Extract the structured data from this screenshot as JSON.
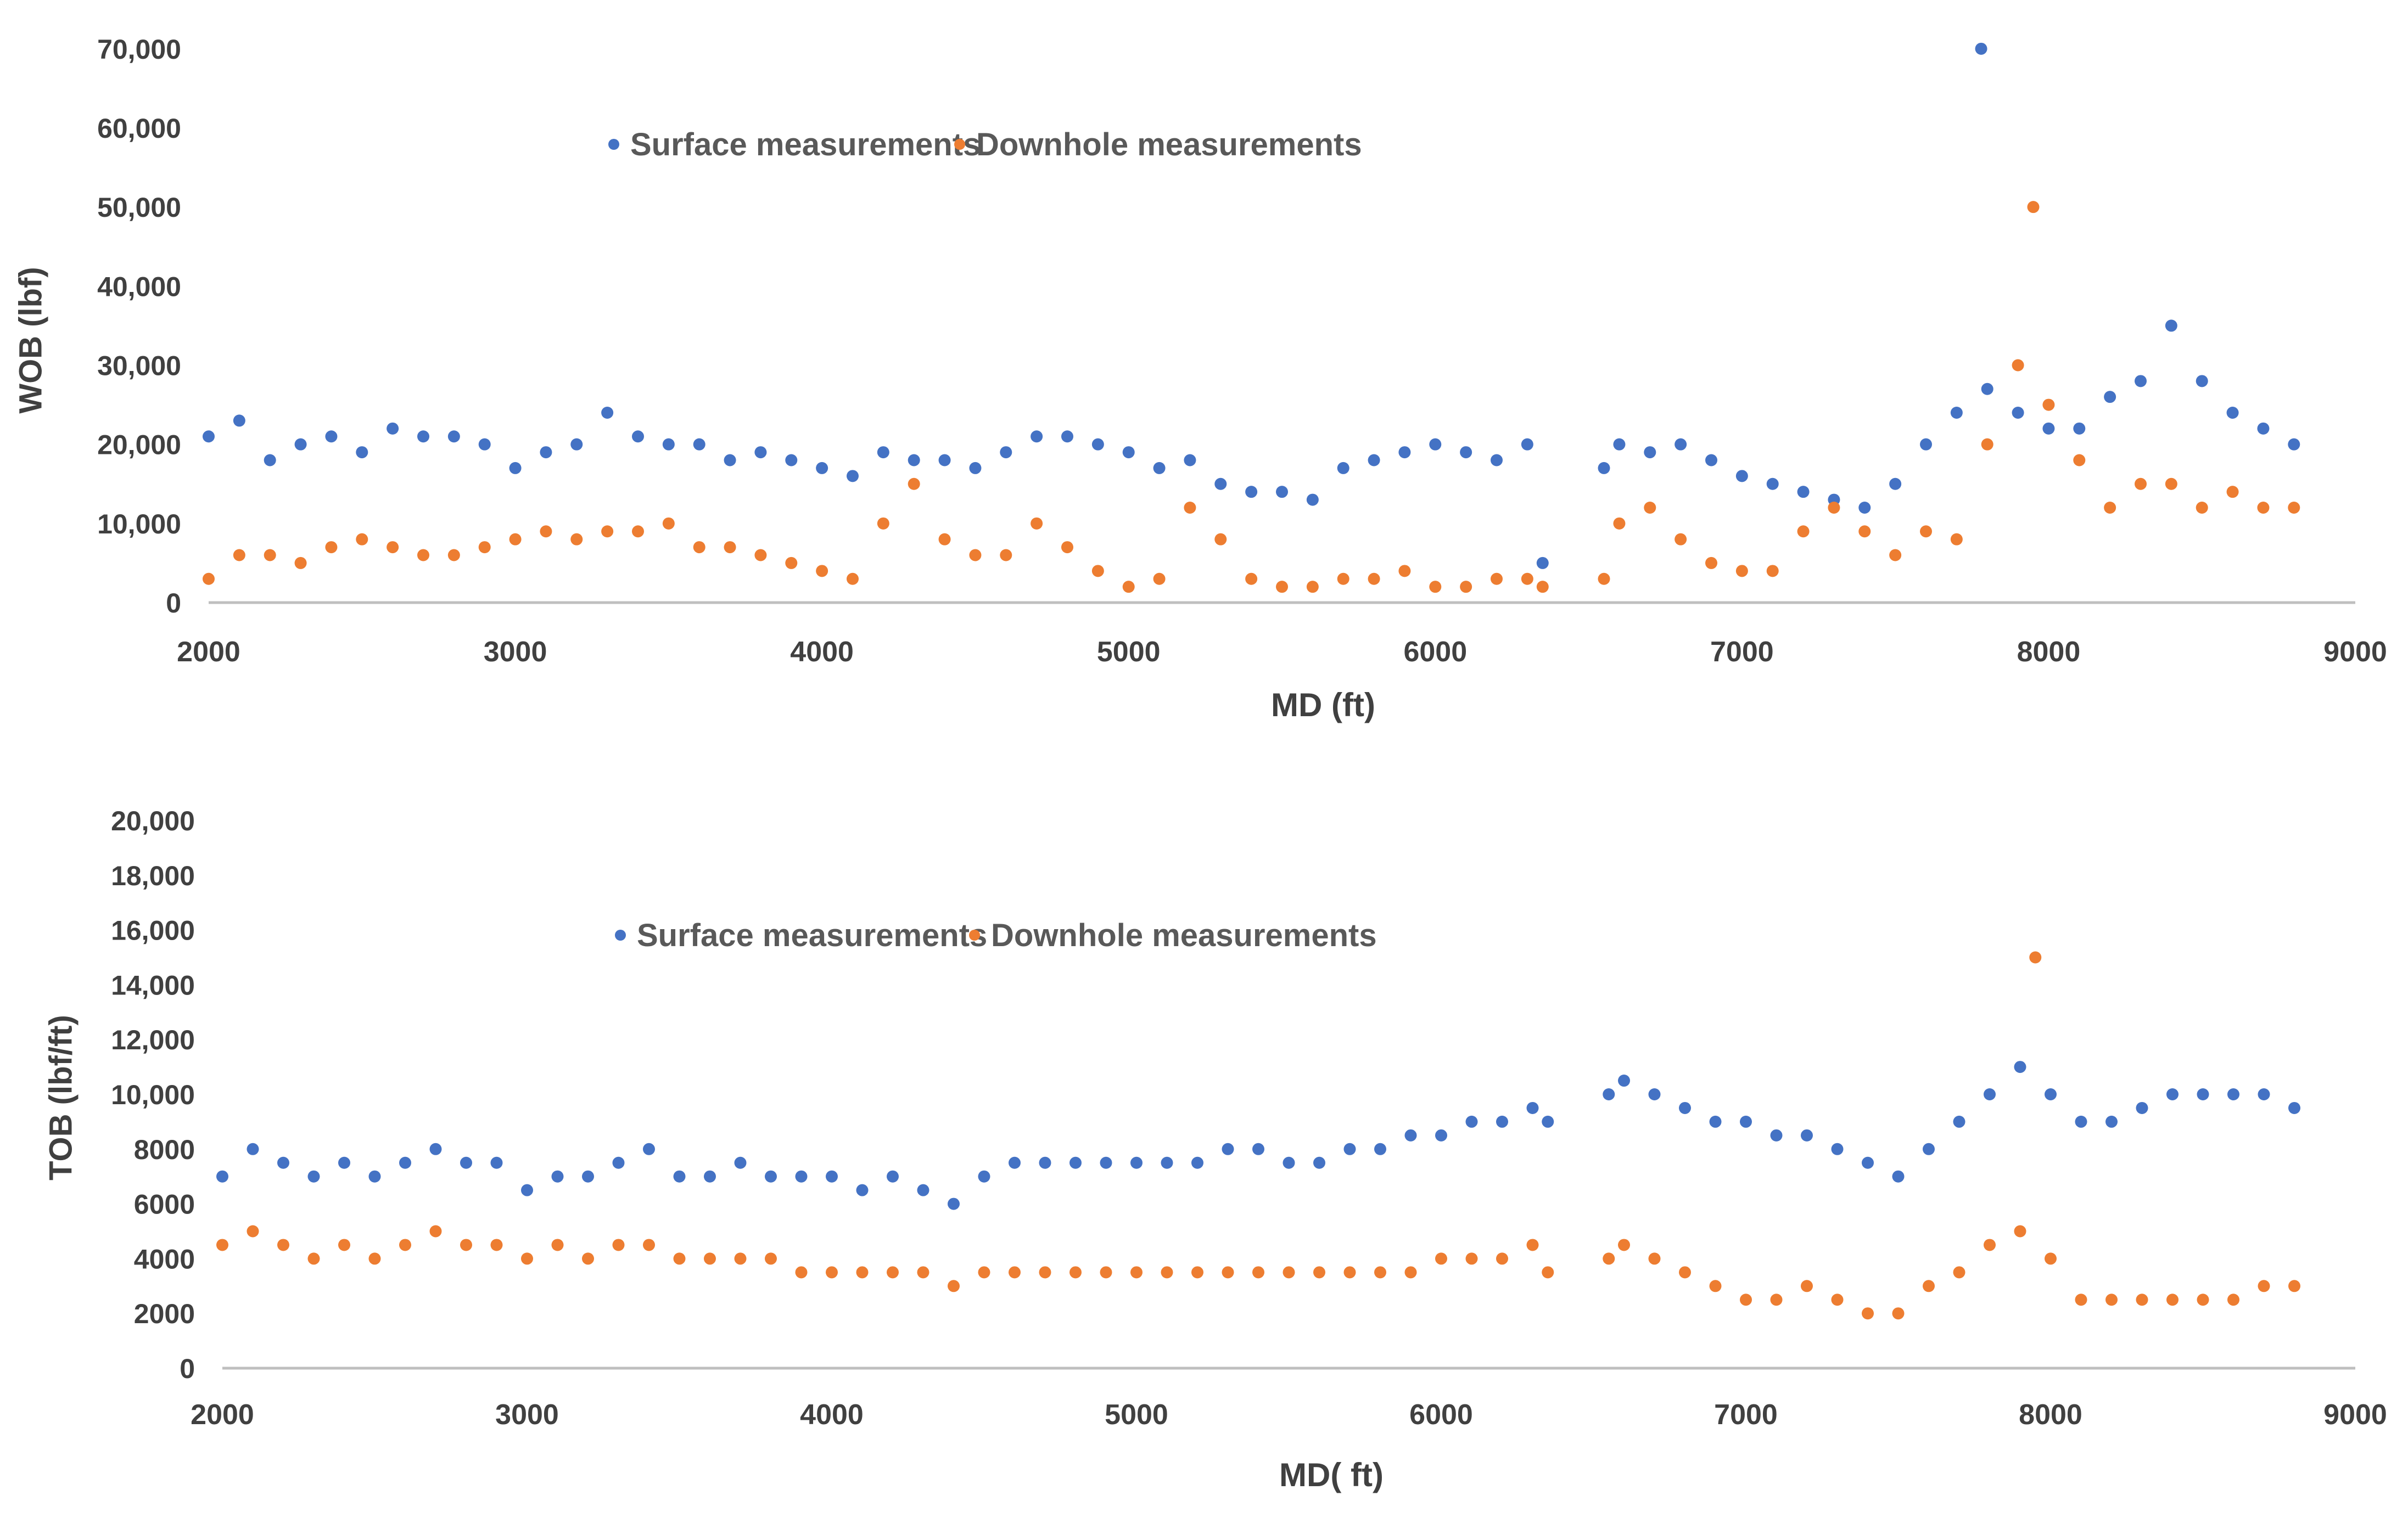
{
  "colors": {
    "surface": "#4472C4",
    "downhole": "#ED7D31",
    "axis": "#BFBFBF",
    "text": "#404040"
  },
  "chart_data": [
    {
      "type": "scatter",
      "id": "wob",
      "xlabel": "MD (ft)",
      "ylabel": "WOB (lbf)",
      "xlim": [
        2000,
        9000
      ],
      "ylim": [
        0,
        72000
      ],
      "xticks": [
        {
          "v": 2000,
          "label": "2000"
        },
        {
          "v": 3000,
          "label": "3000"
        },
        {
          "v": 4000,
          "label": "4000"
        },
        {
          "v": 5000,
          "label": "5000"
        },
        {
          "v": 6000,
          "label": "6000"
        },
        {
          "v": 7000,
          "label": "7000"
        },
        {
          "v": 8000,
          "label": "8000"
        },
        {
          "v": 9000,
          "label": "9000"
        }
      ],
      "yticks": [
        {
          "v": 0,
          "label": "0"
        },
        {
          "v": 10000,
          "label": "10,000"
        },
        {
          "v": 20000,
          "label": "20,000"
        },
        {
          "v": 30000,
          "label": "30,000"
        },
        {
          "v": 40000,
          "label": "40,000"
        },
        {
          "v": 50000,
          "label": "50,000"
        },
        {
          "v": 60000,
          "label": "60,000"
        },
        {
          "v": 70000,
          "label": "70,000"
        }
      ],
      "legend": [
        "Surface measurements",
        "Downhole measurements"
      ],
      "series": [
        {
          "name": "Surface measurements",
          "x": [
            2000,
            2100,
            2200,
            2300,
            2400,
            2500,
            2600,
            2700,
            2800,
            2900,
            3000,
            3100,
            3200,
            3300,
            3400,
            3500,
            3600,
            3700,
            3800,
            3900,
            4000,
            4100,
            4200,
            4300,
            4400,
            4500,
            4600,
            4700,
            4800,
            4900,
            5000,
            5100,
            5200,
            5300,
            5400,
            5500,
            5600,
            5700,
            5800,
            5900,
            6000,
            6100,
            6200,
            6300,
            6350,
            6550,
            6600,
            6700,
            6800,
            6900,
            7000,
            7100,
            7200,
            7300,
            7400,
            7500,
            7600,
            7700,
            7780,
            7800,
            7900,
            8000,
            8100,
            8200,
            8300,
            8400,
            8500,
            8600,
            8700,
            8800
          ],
          "y": [
            21000,
            23000,
            18000,
            20000,
            21000,
            19000,
            22000,
            21000,
            21000,
            20000,
            17000,
            19000,
            20000,
            24000,
            21000,
            20000,
            20000,
            18000,
            19000,
            18000,
            17000,
            16000,
            19000,
            18000,
            18000,
            17000,
            19000,
            21000,
            21000,
            20000,
            19000,
            17000,
            18000,
            15000,
            14000,
            14000,
            13000,
            17000,
            18000,
            19000,
            20000,
            19000,
            18000,
            20000,
            5000,
            17000,
            20000,
            19000,
            20000,
            18000,
            16000,
            15000,
            14000,
            13000,
            12000,
            15000,
            20000,
            24000,
            70000,
            27000,
            24000,
            22000,
            22000,
            26000,
            28000,
            35000,
            28000,
            24000,
            22000,
            20000
          ]
        },
        {
          "name": "Downhole measurements",
          "x": [
            2000,
            2100,
            2200,
            2300,
            2400,
            2500,
            2600,
            2700,
            2800,
            2900,
            3000,
            3100,
            3200,
            3300,
            3400,
            3500,
            3600,
            3700,
            3800,
            3900,
            4000,
            4100,
            4200,
            4300,
            4400,
            4500,
            4600,
            4700,
            4800,
            4900,
            5000,
            5100,
            5200,
            5300,
            5400,
            5500,
            5600,
            5700,
            5800,
            5900,
            6000,
            6100,
            6200,
            6300,
            6350,
            6550,
            6600,
            6700,
            6800,
            6900,
            7000,
            7100,
            7200,
            7300,
            7400,
            7500,
            7600,
            7700,
            7800,
            7900,
            7950,
            8000,
            8100,
            8200,
            8300,
            8400,
            8500,
            8600,
            8700,
            8800
          ],
          "y": [
            3000,
            6000,
            6000,
            5000,
            7000,
            8000,
            7000,
            6000,
            6000,
            7000,
            8000,
            9000,
            8000,
            9000,
            9000,
            10000,
            7000,
            7000,
            6000,
            5000,
            4000,
            3000,
            10000,
            15000,
            8000,
            6000,
            6000,
            10000,
            7000,
            4000,
            2000,
            3000,
            12000,
            8000,
            3000,
            2000,
            2000,
            3000,
            3000,
            4000,
            2000,
            2000,
            3000,
            3000,
            2000,
            3000,
            10000,
            12000,
            8000,
            5000,
            4000,
            4000,
            9000,
            12000,
            9000,
            6000,
            9000,
            8000,
            20000,
            30000,
            50000,
            25000,
            18000,
            12000,
            15000,
            15000,
            12000,
            14000,
            12000,
            12000
          ]
        }
      ]
    },
    {
      "type": "scatter",
      "id": "tob",
      "xlabel": "MD( ft)",
      "ylabel": "TOB (lbf/ft)",
      "xlim": [
        2000,
        9000
      ],
      "ylim": [
        0,
        20000
      ],
      "xticks": [
        {
          "v": 2000,
          "label": "2000"
        },
        {
          "v": 3000,
          "label": "3000"
        },
        {
          "v": 4000,
          "label": "4000"
        },
        {
          "v": 5000,
          "label": "5000"
        },
        {
          "v": 6000,
          "label": "6000"
        },
        {
          "v": 7000,
          "label": "7000"
        },
        {
          "v": 8000,
          "label": "8000"
        },
        {
          "v": 9000,
          "label": "9000"
        }
      ],
      "yticks": [
        {
          "v": 0,
          "label": "0"
        },
        {
          "v": 2000,
          "label": "2000"
        },
        {
          "v": 4000,
          "label": "4000"
        },
        {
          "v": 6000,
          "label": "6000"
        },
        {
          "v": 8000,
          "label": "8000"
        },
        {
          "v": 10000,
          "label": "10,000"
        },
        {
          "v": 12000,
          "label": "12,000"
        },
        {
          "v": 14000,
          "label": "14,000"
        },
        {
          "v": 16000,
          "label": "16,000"
        },
        {
          "v": 18000,
          "label": "18,000"
        },
        {
          "v": 20000,
          "label": "20,000"
        }
      ],
      "legend": [
        "Surface measurements",
        "Downhole measurements"
      ],
      "series": [
        {
          "name": "Surface measurements",
          "x": [
            2000,
            2100,
            2200,
            2300,
            2400,
            2500,
            2600,
            2700,
            2800,
            2900,
            3000,
            3100,
            3200,
            3300,
            3400,
            3500,
            3600,
            3700,
            3800,
            3900,
            4000,
            4100,
            4200,
            4300,
            4400,
            4500,
            4600,
            4700,
            4800,
            4900,
            5000,
            5100,
            5200,
            5300,
            5400,
            5500,
            5600,
            5700,
            5800,
            5900,
            6000,
            6100,
            6200,
            6300,
            6350,
            6550,
            6600,
            6700,
            6800,
            6900,
            7000,
            7100,
            7200,
            7300,
            7400,
            7500,
            7600,
            7700,
            7800,
            7900,
            8000,
            8100,
            8200,
            8300,
            8400,
            8500,
            8600,
            8700,
            8800
          ],
          "y": [
            7000,
            8000,
            7500,
            7000,
            7500,
            7000,
            7500,
            8000,
            7500,
            7500,
            6500,
            7000,
            7000,
            7500,
            8000,
            7000,
            7000,
            7500,
            7000,
            7000,
            7000,
            6500,
            7000,
            6500,
            6000,
            7000,
            7500,
            7500,
            7500,
            7500,
            7500,
            7500,
            7500,
            8000,
            8000,
            7500,
            7500,
            8000,
            8000,
            8500,
            8500,
            9000,
            9000,
            9500,
            9000,
            10000,
            10500,
            10000,
            9500,
            9000,
            9000,
            8500,
            8500,
            8000,
            7500,
            7000,
            8000,
            9000,
            10000,
            11000,
            10000,
            9000,
            9000,
            9500,
            10000,
            10000,
            10000,
            10000,
            9500
          ]
        },
        {
          "name": "Downhole measurements",
          "x": [
            2000,
            2100,
            2200,
            2300,
            2400,
            2500,
            2600,
            2700,
            2800,
            2900,
            3000,
            3100,
            3200,
            3300,
            3400,
            3500,
            3600,
            3700,
            3800,
            3900,
            4000,
            4100,
            4200,
            4300,
            4400,
            4500,
            4600,
            4700,
            4800,
            4900,
            5000,
            5100,
            5200,
            5300,
            5400,
            5500,
            5600,
            5700,
            5800,
            5900,
            6000,
            6100,
            6200,
            6300,
            6350,
            6550,
            6600,
            6700,
            6800,
            6900,
            7000,
            7100,
            7200,
            7300,
            7400,
            7500,
            7600,
            7700,
            7800,
            7900,
            7950,
            8000,
            8100,
            8200,
            8300,
            8400,
            8500,
            8600,
            8700,
            8800
          ],
          "y": [
            4500,
            5000,
            4500,
            4000,
            4500,
            4000,
            4500,
            5000,
            4500,
            4500,
            4000,
            4500,
            4000,
            4500,
            4500,
            4000,
            4000,
            4000,
            4000,
            3500,
            3500,
            3500,
            3500,
            3500,
            3000,
            3500,
            3500,
            3500,
            3500,
            3500,
            3500,
            3500,
            3500,
            3500,
            3500,
            3500,
            3500,
            3500,
            3500,
            3500,
            4000,
            4000,
            4000,
            4500,
            3500,
            4000,
            4500,
            4000,
            3500,
            3000,
            2500,
            2500,
            3000,
            2500,
            2000,
            2000,
            3000,
            3500,
            4500,
            5000,
            15000,
            4000,
            2500,
            2500,
            2500,
            2500,
            2500,
            2500,
            3000,
            3000
          ]
        }
      ]
    }
  ]
}
